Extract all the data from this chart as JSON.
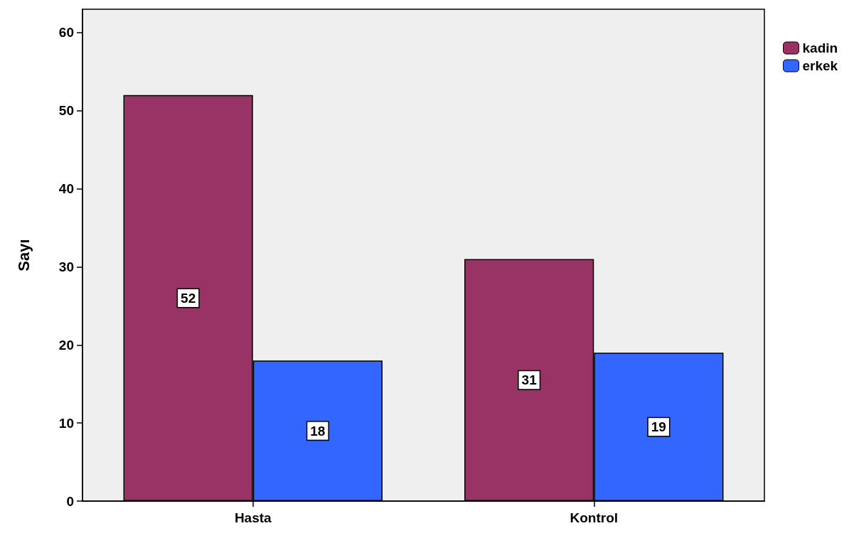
{
  "chart_data": {
    "type": "bar",
    "ylabel": "Sayı",
    "categories": [
      "Hasta",
      "Kontrol"
    ],
    "series": [
      {
        "name": "kadin",
        "color": "#993366",
        "values": [
          52,
          31
        ]
      },
      {
        "name": "erkek",
        "color": "#3366ff",
        "values": [
          18,
          19
        ]
      }
    ],
    "ylim": [
      0,
      63
    ],
    "yticks": [
      0,
      10,
      20,
      30,
      40,
      50,
      60
    ],
    "grid": false,
    "legend": "top right",
    "data_labels": true
  }
}
